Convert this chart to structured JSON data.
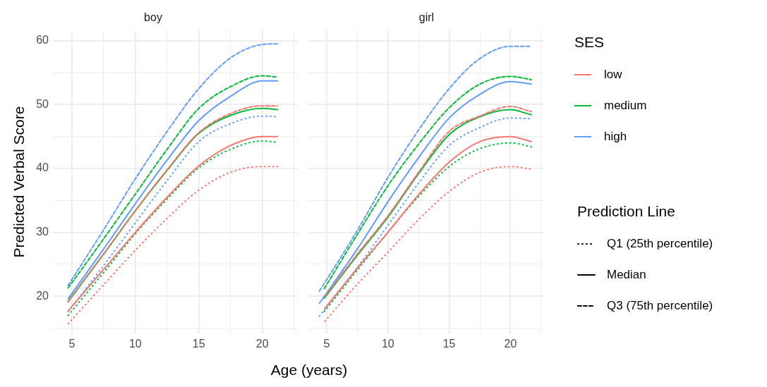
{
  "chart_data": [
    {
      "type": "line",
      "title": "boy",
      "xlabel": "Age (years)",
      "ylabel": "Predicted Verbal Score",
      "x": [
        4.7,
        7.5,
        10,
        12.5,
        15,
        17.5,
        20,
        21.2
      ],
      "xlim": [
        3.5,
        22.8
      ],
      "xticks": [
        5,
        {
          "value": 7.5,
          "label": null
        },
        10,
        {
          "value": 12.5,
          "label": null
        },
        15,
        {
          "value": 17.5,
          "label": null
        },
        20,
        {
          "value": 22.5,
          "label": null
        }
      ],
      "ylim": [
        14.2,
        61.6
      ],
      "yticks": [
        {
          "value": 15,
          "label": null
        },
        20,
        {
          "value": 25,
          "label": null
        },
        30,
        {
          "value": 35,
          "label": null
        },
        40,
        {
          "value": 45,
          "label": null
        },
        50,
        {
          "value": 55,
          "label": null
        },
        60
      ],
      "grid": true,
      "series": [
        {
          "color": "#f8766d",
          "line_style": "dotted",
          "values": [
            15.7,
            21.8,
            27.2,
            32.2,
            36.6,
            39.4,
            40.3,
            40.3
          ]
        },
        {
          "color": "#00ba38",
          "line_style": "dotted",
          "values": [
            17.0,
            23.7,
            29.8,
            35.2,
            40.1,
            43.0,
            44.3,
            44.1
          ]
        },
        {
          "color": "#619cff",
          "line_style": "dotted",
          "values": [
            17.6,
            24.8,
            31.5,
            38.1,
            44.2,
            47.0,
            48.2,
            48.1
          ]
        },
        {
          "color": "#f8766d",
          "line_style": "solid",
          "values": [
            17.7,
            24.2,
            30.0,
            35.5,
            40.4,
            43.6,
            45.0,
            45.0
          ]
        },
        {
          "color": "#00ba38",
          "line_style": "solid",
          "values": [
            19.2,
            26.6,
            33.4,
            39.7,
            45.5,
            48.3,
            49.4,
            49.2
          ]
        },
        {
          "color": "#619cff",
          "line_style": "solid",
          "values": [
            19.6,
            27.4,
            34.5,
            41.3,
            47.5,
            51.3,
            53.7,
            53.7
          ]
        },
        {
          "color": "#f8766d",
          "line_style": "dashed",
          "values": [
            19.1,
            26.6,
            33.4,
            39.8,
            45.6,
            48.6,
            49.8,
            49.8
          ]
        },
        {
          "color": "#00ba38",
          "line_style": "dashed",
          "values": [
            21.3,
            29.0,
            36.0,
            43.0,
            49.4,
            52.8,
            54.5,
            54.3
          ]
        },
        {
          "color": "#619cff",
          "line_style": "dashed",
          "values": [
            21.7,
            30.4,
            38.4,
            45.8,
            52.5,
            57.3,
            59.4,
            59.5
          ]
        }
      ]
    },
    {
      "type": "line",
      "title": "girl",
      "xlim": [
        3.5,
        22.8
      ],
      "xticks": [
        5,
        {
          "value": 7.5,
          "label": null
        },
        10,
        {
          "value": 12.5,
          "label": null
        },
        15,
        {
          "value": 17.5,
          "label": null
        },
        20,
        {
          "value": 22.5,
          "label": null
        }
      ],
      "ylim": [
        14.2,
        61.6
      ],
      "yticks": [
        {
          "value": 15,
          "label": null
        },
        20,
        {
          "value": 25,
          "label": null
        },
        30,
        {
          "value": 35,
          "label": null
        },
        40,
        {
          "value": 45,
          "label": null
        },
        50,
        {
          "value": 55,
          "label": null
        },
        60
      ],
      "grid": true,
      "tick_labels": "x",
      "legend": "right",
      "legend_title": "SES",
      "series": [
        {
          "color": "#f8766d",
          "line_style": "dotted",
          "x": [
            4.85,
            7.5,
            10,
            12.5,
            15,
            17.5,
            20,
            21.7
          ],
          "values": [
            16.1,
            21.9,
            26.9,
            32.0,
            36.4,
            39.4,
            40.3,
            39.9
          ]
        },
        {
          "color": "#00ba38",
          "line_style": "dotted",
          "x": [
            4.8,
            7.5,
            10,
            12.5,
            15,
            17.5,
            20,
            21.7
          ],
          "values": [
            17.6,
            24.1,
            30.0,
            35.6,
            40.3,
            43.1,
            44.0,
            43.4
          ]
        },
        {
          "color": "#619cff",
          "line_style": "dotted",
          "x": [
            4.4,
            7.5,
            10,
            12.5,
            15,
            17.5,
            20,
            21.7
          ],
          "values": [
            16.9,
            24.5,
            31.1,
            37.7,
            43.6,
            46.4,
            47.9,
            47.8
          ]
        },
        {
          "name": "low",
          "color": "#f8766d",
          "line_style": "solid",
          "x": [
            4.85,
            7.5,
            10,
            12.5,
            15,
            17.5,
            20,
            21.7
          ],
          "values": [
            18.1,
            24.4,
            30.0,
            35.9,
            41.0,
            44.2,
            45.0,
            44.2
          ]
        },
        {
          "name": "medium",
          "color": "#00ba38",
          "line_style": "solid",
          "x": [
            4.8,
            7.5,
            10,
            12.5,
            15,
            17.5,
            20,
            21.7
          ],
          "values": [
            19.7,
            26.4,
            32.4,
            39.2,
            45.3,
            48.1,
            49.2,
            48.4
          ]
        },
        {
          "name": "high",
          "color": "#619cff",
          "line_style": "solid",
          "x": [
            4.4,
            7.5,
            10,
            12.5,
            15,
            17.5,
            20,
            21.7
          ],
          "values": [
            18.9,
            27.4,
            34.8,
            41.7,
            47.9,
            51.6,
            53.6,
            53.2
          ]
        },
        {
          "color": "#f8766d",
          "line_style": "dashed",
          "x": [
            4.85,
            7.5,
            10,
            12.5,
            15,
            17.5,
            20,
            21.7
          ],
          "values": [
            20.0,
            26.6,
            32.6,
            39.4,
            45.8,
            48.2,
            49.7,
            48.9
          ]
        },
        {
          "color": "#00ba38",
          "line_style": "dashed",
          "x": [
            4.8,
            7.5,
            10,
            12.5,
            15,
            17.5,
            20,
            21.7
          ],
          "values": [
            21.2,
            29.7,
            37.3,
            43.8,
            49.5,
            53.2,
            54.4,
            53.9
          ]
        },
        {
          "color": "#619cff",
          "line_style": "dashed",
          "x": [
            4.4,
            7.5,
            10,
            12.5,
            15,
            17.5,
            20,
            21.7
          ],
          "values": [
            20.8,
            30.3,
            38.6,
            46.0,
            52.5,
            57.2,
            59.1,
            59.1
          ]
        }
      ]
    },
    {
      "type": "other",
      "title": "Prediction Line",
      "annotations": [
        "Q1 (25th percentile)",
        "Median",
        "Q3 (75th percentile)"
      ]
    }
  ]
}
